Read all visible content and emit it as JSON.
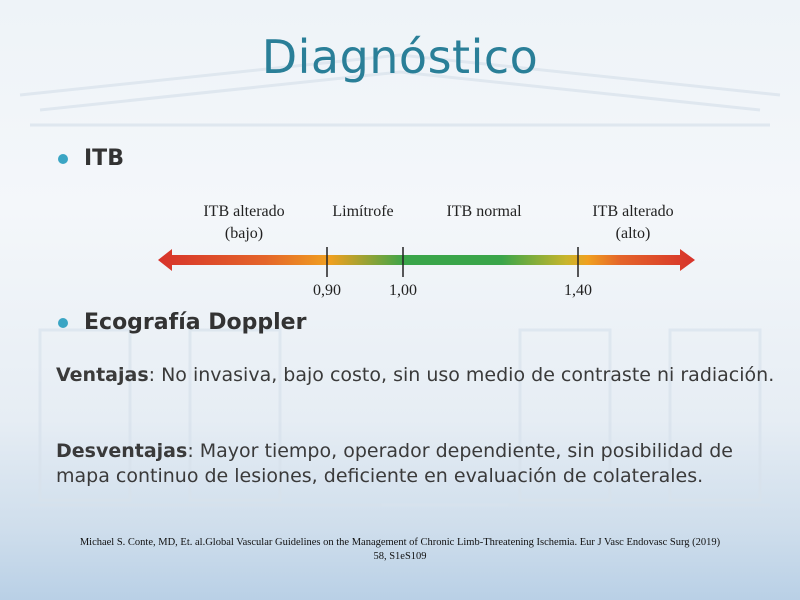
{
  "slide": {
    "title": "Diagnóstico",
    "bullet_itb": "ITB",
    "bullet_doppler": "Ecografía Doppler",
    "ventajas_label": "Ventajas",
    "ventajas_text": ": No invasiva, bajo costo, sin uso medio de contraste ni radiación.",
    "desventajas_label": "Desventajas",
    "desventajas_text": ": Mayor tiempo, operador dependiente, sin posibilidad de mapa continuo de lesiones, deficiente en evaluación de colaterales.",
    "reference_line1": "Michael S. Conte, MD, Et. al.Global  Vascular Guidelines  on the Management of Chronic Limb-Threatening  Ischemia. Eur J Vasc Endovasc Surg (2019)",
    "reference_line2": "58, S1eS109"
  },
  "itb_scale": {
    "label_low_1": "ITB alterado",
    "label_low_2": "(bajo)",
    "label_border": "Limítrofe",
    "label_normal": "ITB normal",
    "label_high_1": "ITB alterado",
    "label_high_2": "(alto)",
    "ticks": [
      "0,90",
      "1,00",
      "1,40"
    ]
  },
  "colors": {
    "title": "#2a7f98",
    "bullet": "#3aa5c4",
    "arrow_red": "#d7332b",
    "arrow_orange": "#f0a020",
    "arrow_green": "#3aa54a"
  }
}
